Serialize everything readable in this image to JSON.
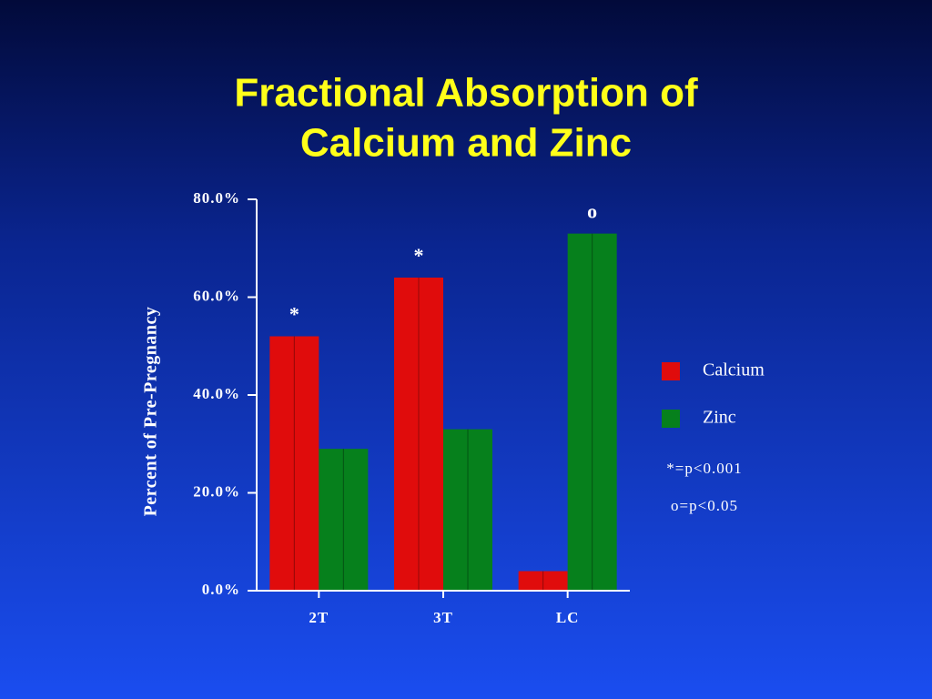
{
  "chart_data": {
    "type": "bar",
    "title": [
      "Fractional Absorption of",
      "Calcium and Zinc"
    ],
    "y_label": "Percent of Pre-Pregnancy",
    "categories": [
      "2T",
      "3T",
      "LC"
    ],
    "series": [
      {
        "name": "Calcium",
        "color": "#e00c0c",
        "values": [
          52,
          64,
          4
        ],
        "significance": [
          "*",
          "*",
          null
        ]
      },
      {
        "name": "Zinc",
        "color": "#06801c",
        "values": [
          29,
          33,
          73
        ],
        "significance": [
          null,
          null,
          "o"
        ]
      }
    ],
    "notes": [
      "*=p<0.001",
      "o=p<0.05"
    ],
    "ylim": [
      0,
      80
    ],
    "yticks": [
      {
        "value": 0,
        "label": "0.0%"
      },
      {
        "value": 20,
        "label": "20.0%"
      },
      {
        "value": 40,
        "label": "40.0%"
      },
      {
        "value": 60,
        "label": "60.0%"
      },
      {
        "value": 80,
        "label": "80.0%"
      }
    ]
  }
}
